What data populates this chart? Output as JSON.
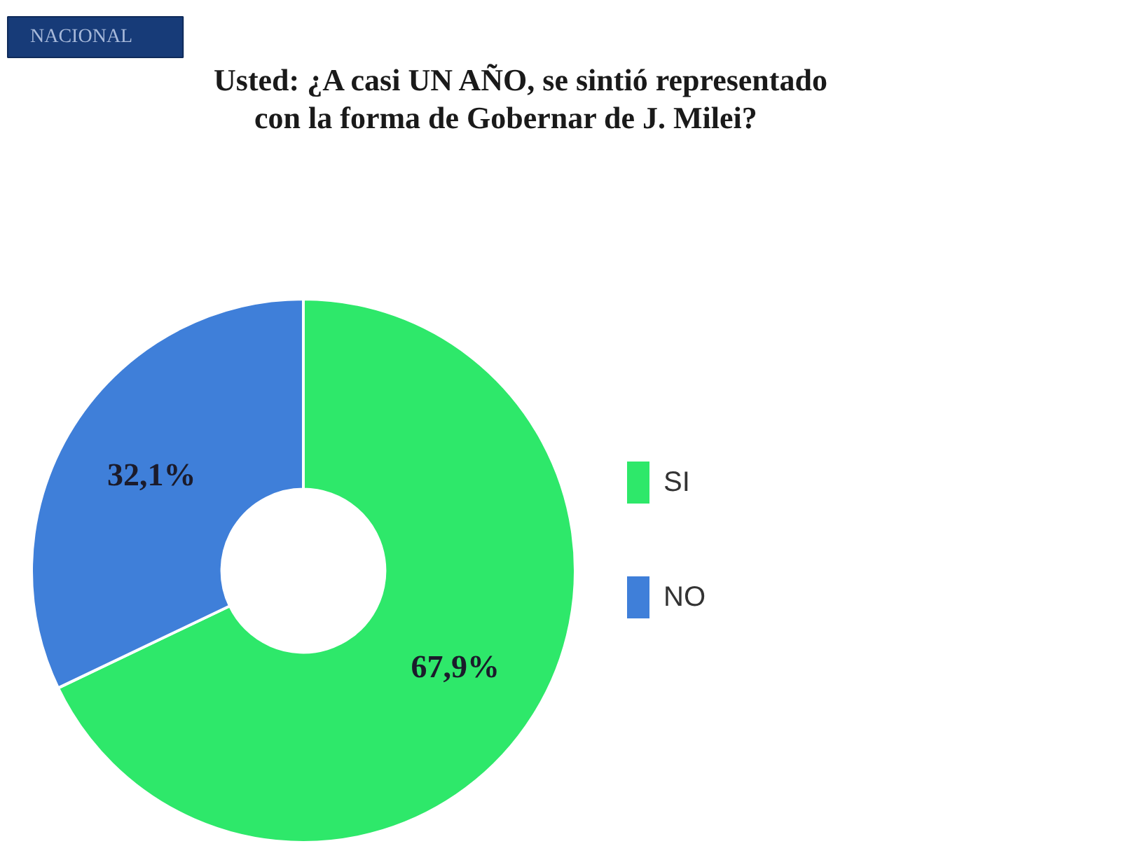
{
  "chart_data": {
    "type": "donut",
    "title": "Usted: ¿A casi UN AÑO, se sintió representado con la forma de Gobernar de J. Milei?",
    "categories": [
      "SI",
      "NO"
    ],
    "values": [
      67.9,
      32.1
    ],
    "colors": [
      "#2ee86a",
      "#3f7fd9"
    ],
    "value_labels": [
      "67,9%",
      "32,1%"
    ],
    "legend": "right",
    "annotations": [
      "NACIONAL"
    ]
  }
}
